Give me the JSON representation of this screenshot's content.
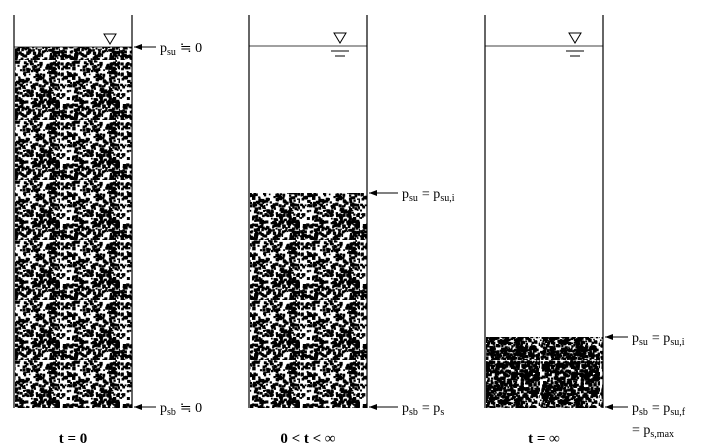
{
  "columns": [
    {
      "labels": [
        {
          "lines": [
            [
              {
                "text": "p"
              },
              {
                "text": "su",
                "sub": true
              },
              {
                "text": "≒ 0"
              }
            ]
          ]
        },
        {
          "lines": [
            [
              {
                "text": "p"
              },
              {
                "text": "sb",
                "sub": true
              },
              {
                "text": "≒ 0"
              }
            ]
          ]
        }
      ],
      "caption": "t = 0"
    },
    {
      "labels": [
        {
          "lines": [
            [
              {
                "text": "p"
              },
              {
                "text": "su",
                "sub": true
              },
              {
                "text": "= p"
              },
              {
                "text": "su,i",
                "sub": true
              }
            ]
          ]
        },
        {
          "lines": [
            [
              {
                "text": "p"
              },
              {
                "text": "sb",
                "sub": true
              },
              {
                "text": "= p"
              },
              {
                "text": "s",
                "sub": true
              }
            ]
          ]
        }
      ],
      "caption": "0 < t < ∞"
    },
    {
      "labels": [
        {
          "lines": [
            [
              {
                "text": "p"
              },
              {
                "text": "su",
                "sub": true
              },
              {
                "text": "= p"
              },
              {
                "text": "su,i",
                "sub": true
              }
            ]
          ]
        },
        {
          "lines": [
            [
              {
                "text": "p"
              },
              {
                "text": "sb",
                "sub": true
              },
              {
                "text": "= p"
              },
              {
                "text": "su,f",
                "sub": true
              }
            ],
            [
              {
                "text": "= p"
              },
              {
                "text": "s,max",
                "sub": true
              }
            ]
          ]
        }
      ],
      "caption": "t = ∞"
    }
  ]
}
